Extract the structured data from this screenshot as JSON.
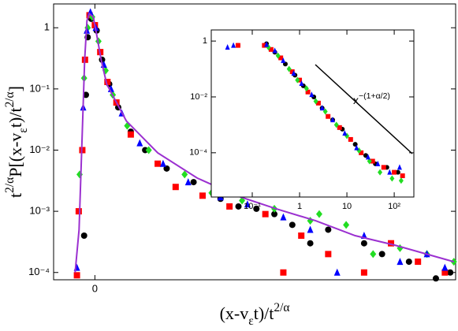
{
  "chart_data": [
    {
      "type": "scatter",
      "xscale": "linear",
      "yscale": "log",
      "xlabel": [
        "(x-v",
        {
          "sub": "ε"
        },
        "t)/t",
        {
          "sup": "2/α"
        }
      ],
      "ylabel": [
        "t",
        {
          "sup": "2/α"
        },
        "P[(x-v",
        {
          "sub": "ε"
        },
        "t)/t",
        {
          "sup": "2/α"
        },
        "]"
      ],
      "xlim": [
        -0.23,
        2.01
      ],
      "ylim": [
        7.6e-05,
        2.45
      ],
      "xticks": [
        0
      ],
      "yticks": [
        1,
        {
          "value": 0.1,
          "label": "10⁻¹"
        },
        {
          "value": 0.01,
          "label": "10⁻²"
        },
        {
          "value": 0.001,
          "label": "10⁻³"
        },
        {
          "value": 0.0001,
          "label": "10⁻⁴"
        }
      ],
      "series": [
        {
          "marker": "circle",
          "color": "#000000",
          "x": [
            -0.06,
            -0.05,
            -0.04,
            -0.02,
            0.01,
            0.04,
            0.08,
            0.13,
            0.2,
            0.28,
            0.4,
            0.55,
            0.7,
            0.8,
            0.9,
            1.0,
            1.1,
            1.2,
            1.3,
            1.5,
            1.6,
            1.75,
            1.9,
            1.98
          ],
          "values": [
            0.0004,
            0.08,
            0.7,
            1.4,
            0.9,
            0.3,
            0.12,
            0.05,
            0.02,
            0.01,
            0.005,
            0.003,
            0.0016,
            0.0012,
            0.0011,
            0.0009,
            0.0006,
            0.0003,
            0.0005,
            0.0003,
            0.0002,
            0.00015,
            8e-05,
            0.0001
          ]
        },
        {
          "marker": "square",
          "color": "#ff0000",
          "x": [
            -0.1,
            -0.09,
            -0.07,
            -0.055,
            -0.03,
            0.0,
            0.03,
            0.07,
            0.12,
            0.2,
            0.35,
            0.45,
            0.6,
            0.75,
            0.95,
            1.05,
            1.15,
            1.3,
            1.5,
            1.65,
            1.8,
            1.95
          ],
          "values": [
            9e-05,
            0.001,
            0.01,
            0.3,
            1.6,
            1.1,
            0.4,
            0.13,
            0.06,
            0.018,
            0.006,
            0.0025,
            0.0018,
            0.0012,
            0.0009,
            0.0001,
            0.0004,
            0.0002,
            0.0001,
            0.0003,
            0.00015,
            0.0001
          ]
        },
        {
          "marker": "diamond",
          "color": "#22dd22",
          "x": [
            -0.085,
            -0.06,
            -0.04,
            -0.015,
            0.02,
            0.06,
            0.1,
            0.18,
            0.3,
            0.5,
            0.65,
            0.82,
            1.0,
            1.2,
            1.25,
            1.4,
            1.55,
            1.7,
            1.85,
            2.0
          ],
          "values": [
            0.004,
            0.15,
            1.0,
            1.5,
            0.6,
            0.2,
            0.08,
            0.025,
            0.01,
            0.004,
            0.002,
            0.0015,
            0.0011,
            0.0007,
            0.0009,
            0.0006,
            0.0002,
            0.00025,
            0.0002,
            0.00015
          ]
        },
        {
          "marker": "triangle",
          "color": "#0000ff",
          "x": [
            -0.1,
            -0.065,
            -0.045,
            -0.025,
            0.005,
            0.05,
            0.09,
            0.15,
            0.25,
            0.38,
            0.52,
            0.7,
            0.85,
            1.05,
            1.2,
            1.35,
            1.5,
            1.7,
            1.85,
            1.95
          ],
          "values": [
            0.00012,
            0.05,
            0.9,
            1.8,
            1.0,
            0.25,
            0.1,
            0.04,
            0.013,
            0.006,
            0.003,
            0.0017,
            0.0013,
            0.0008,
            0.0005,
            0.0001,
            0.0004,
            0.00015,
            0.0002,
            0.00012
          ]
        },
        {
          "marker": "line",
          "color": "#9b30d0",
          "x": [
            -0.11,
            -0.088,
            -0.07,
            -0.057,
            -0.044,
            -0.031,
            -0.009,
            0.009,
            0.035,
            0.066,
            0.175,
            0.35,
            0.57,
            0.79,
            1.01,
            1.23,
            1.45,
            1.67,
            2.0
          ],
          "values": [
            0.0001,
            0.0005,
            0.02,
            0.3,
            1.3,
            1.7,
            1.5,
            0.8,
            0.3,
            0.12,
            0.03,
            0.009,
            0.0035,
            0.0018,
            0.0011,
            0.0007,
            0.0004,
            0.00028,
            0.00015
          ]
        }
      ]
    },
    {
      "type": "scatter",
      "xscale": "log",
      "yscale": "log",
      "xlim": [
        0.0136,
        260
      ],
      "ylim": [
        2.6e-06,
        2.5
      ],
      "xticks": [
        {
          "value": 0.1,
          "label": "10⁻¹"
        },
        1,
        10,
        {
          "value": 100,
          "label": "10²"
        }
      ],
      "yticks": [
        1,
        {
          "value": 0.01,
          "label": "10⁻²"
        },
        {
          "value": 0.0001,
          "label": "10⁻⁴"
        }
      ],
      "annotation": {
        "base": "x",
        "exponent": "−(1+α/2)"
      },
      "series": [
        {
          "marker": "circle",
          "color": "#000000",
          "x": [
            0.05,
            0.2,
            0.3,
            0.5,
            0.8,
            1.2,
            2,
            3,
            5,
            8,
            15,
            25,
            40,
            70,
            120
          ],
          "values": [
            0.7,
            0.8,
            0.4,
            0.15,
            0.06,
            0.025,
            0.01,
            0.004,
            0.0015,
            0.0007,
            0.0002,
            8e-05,
            4e-05,
            3e-05,
            2e-05
          ]
        },
        {
          "marker": "square",
          "color": "#ff0000",
          "x": [
            0.05,
            0.18,
            0.25,
            0.4,
            0.7,
            1,
            1.5,
            2.5,
            4,
            7,
            12,
            20,
            35,
            60,
            100,
            150
          ],
          "values": [
            0.7,
            0.7,
            0.5,
            0.25,
            0.08,
            0.04,
            0.015,
            0.006,
            0.002,
            0.0008,
            0.0003,
            0.0001,
            5e-05,
            3e-05,
            2e-05,
            1.5e-05
          ]
        },
        {
          "marker": "diamond",
          "color": "#22dd22",
          "x": [
            0.22,
            0.35,
            0.6,
            0.9,
            1.4,
            2.2,
            3.5,
            6,
            10,
            18,
            30,
            50,
            90,
            140
          ],
          "values": [
            0.6,
            0.3,
            0.1,
            0.04,
            0.02,
            0.007,
            0.003,
            0.001,
            0.0004,
            0.00012,
            5e-05,
            2e-05,
            1.2e-05,
            1e-05
          ]
        },
        {
          "marker": "triangle",
          "color": "#0000ff",
          "x": [
            0.03,
            0.04,
            0.2,
            0.3,
            0.45,
            0.75,
            1.1,
            1.8,
            3,
            5,
            9,
            16,
            28,
            45,
            80,
            130
          ],
          "values": [
            0.6,
            0.7,
            0.75,
            0.45,
            0.2,
            0.07,
            0.03,
            0.012,
            0.004,
            0.0015,
            0.0005,
            0.00015,
            7e-05,
            4e-05,
            2e-05,
            3e-05
          ]
        }
      ]
    }
  ]
}
